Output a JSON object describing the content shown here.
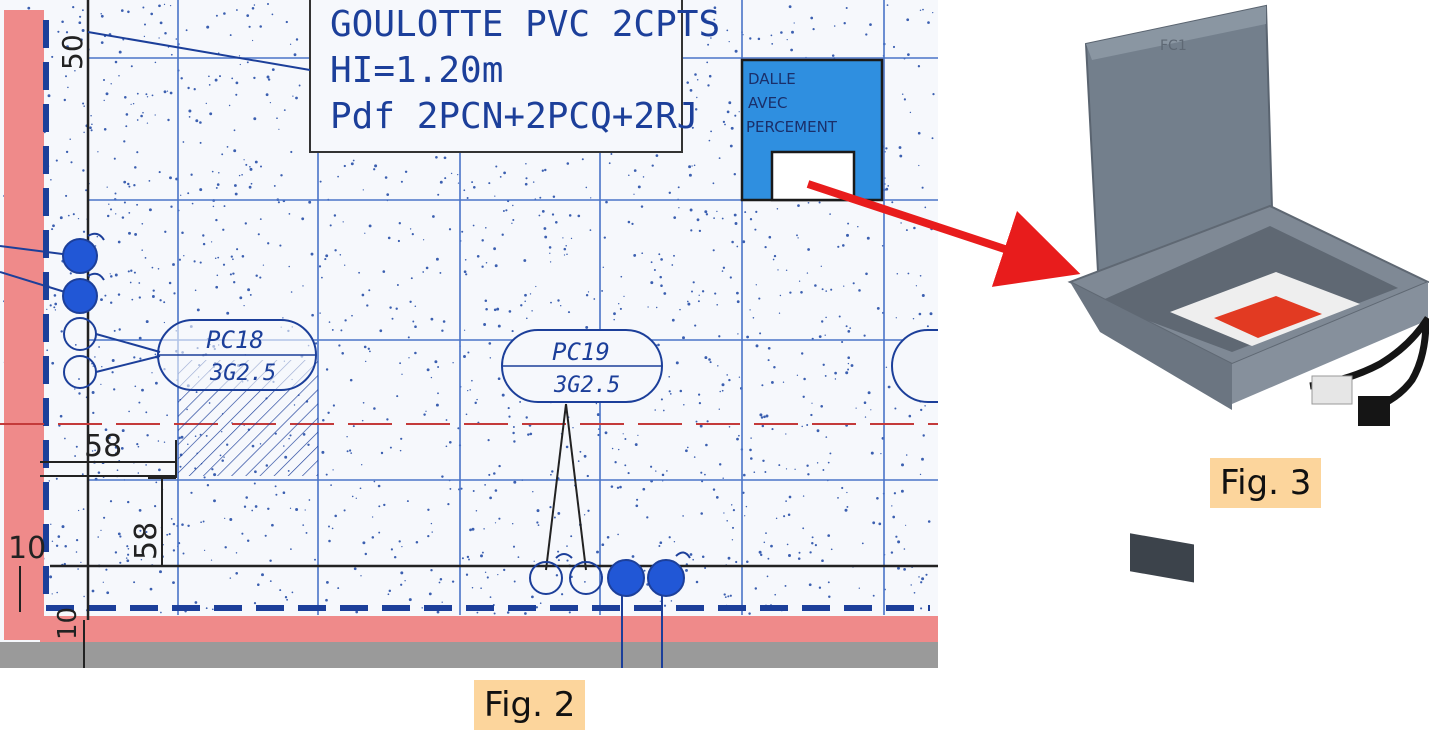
{
  "figure2": {
    "caption": "Fig. 2",
    "note_line1": "GOULOTTE PVC 2CPTS",
    "note_line2": "HI=1.20m",
    "note_line3": "Pdf 2PCN+2PCQ+2RJ",
    "slab_line1": "DALLE",
    "slab_line2": "AVEC",
    "slab_line3": "PERCEMENT",
    "pc18_line1": "PC18",
    "pc18_line2": "3G2.5",
    "pc19_line1": "PC19",
    "pc19_line2": "3G2.5",
    "dim_top": "50",
    "dim_h": "58",
    "dim_v": "58",
    "dim_left": "10",
    "dim_bottom": "10"
  },
  "figure3": {
    "caption": "Fig. 3",
    "lid_mark": "FC1"
  },
  "colors": {
    "plan_blue": "#1c3f9a",
    "slab_fill": "#2f8fe0",
    "wall_pink": "#ef8a8a",
    "arrow_red": "#e81c1c",
    "caption_bg": "#fcd59c"
  }
}
